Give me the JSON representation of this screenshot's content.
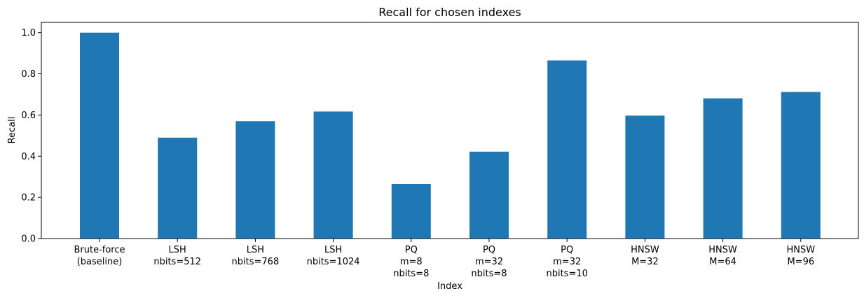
{
  "chart_data": {
    "type": "bar",
    "title": "Recall for chosen indexes",
    "xlabel": "Index",
    "ylabel": "Recall",
    "ylim": [
      0,
      1.05
    ],
    "yticks": [
      "0.0",
      "0.2",
      "0.4",
      "0.6",
      "0.8",
      "1.0"
    ],
    "ytick_values": [
      0,
      0.2,
      0.4,
      0.6,
      0.8,
      1.0
    ],
    "grid": false,
    "categories": [
      [
        "Brute-force",
        "(baseline)"
      ],
      [
        "LSH",
        "nbits=512"
      ],
      [
        "LSH",
        "nbits=768"
      ],
      [
        "LSH",
        "nbits=1024"
      ],
      [
        "PQ",
        "m=8",
        "nbits=8"
      ],
      [
        "PQ",
        "m=32",
        "nbits=8"
      ],
      [
        "PQ",
        "m=32",
        "nbits=10"
      ],
      [
        "HNSW",
        "M=32"
      ],
      [
        "HNSW",
        "M=64"
      ],
      [
        "HNSW",
        "M=96"
      ]
    ],
    "values": [
      1.0,
      0.49,
      0.57,
      0.617,
      0.265,
      0.422,
      0.865,
      0.597,
      0.681,
      0.712
    ],
    "bar_color": "#1f77b4"
  }
}
